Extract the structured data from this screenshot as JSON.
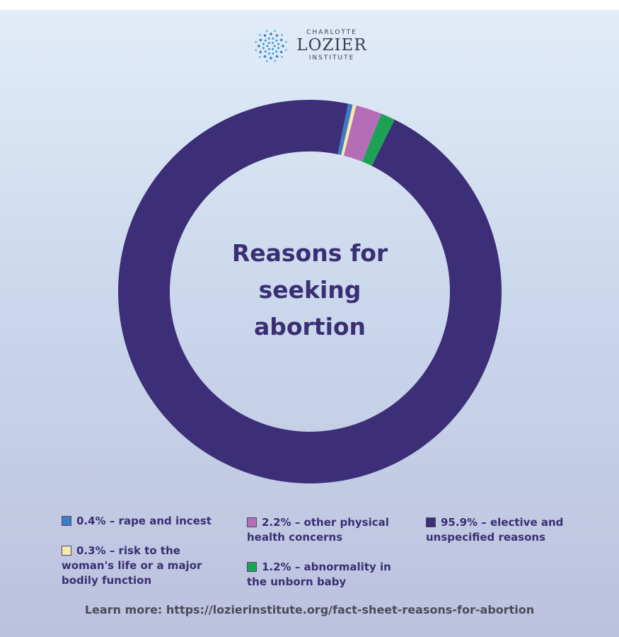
{
  "logo": {
    "top": "CHARLOTTE",
    "main": "LOZIER",
    "bottom": "INSTITUTE"
  },
  "chart_data": {
    "type": "pie",
    "title": "Reasons for seeking abortion",
    "slices": [
      {
        "label": "0.4% – rape and incest",
        "value": 0.4,
        "color": "#3d7cc9"
      },
      {
        "label": "0.3% – risk to the woman's life or a major bodily function",
        "value": 0.3,
        "color": "#fbe9a9"
      },
      {
        "label": "2.2% – other physical health concerns",
        "value": 2.2,
        "color": "#b46db6"
      },
      {
        "label": "1.2% – abnormality in the unborn baby",
        "value": 1.2,
        "color": "#1da255"
      },
      {
        "label": "95.9% – elective and unspecified reasons",
        "value": 95.9,
        "color": "#3c2f77"
      }
    ]
  },
  "footer": "Learn more: https://lozierinstitute.org/fact-sheet-reasons-for-abortion"
}
